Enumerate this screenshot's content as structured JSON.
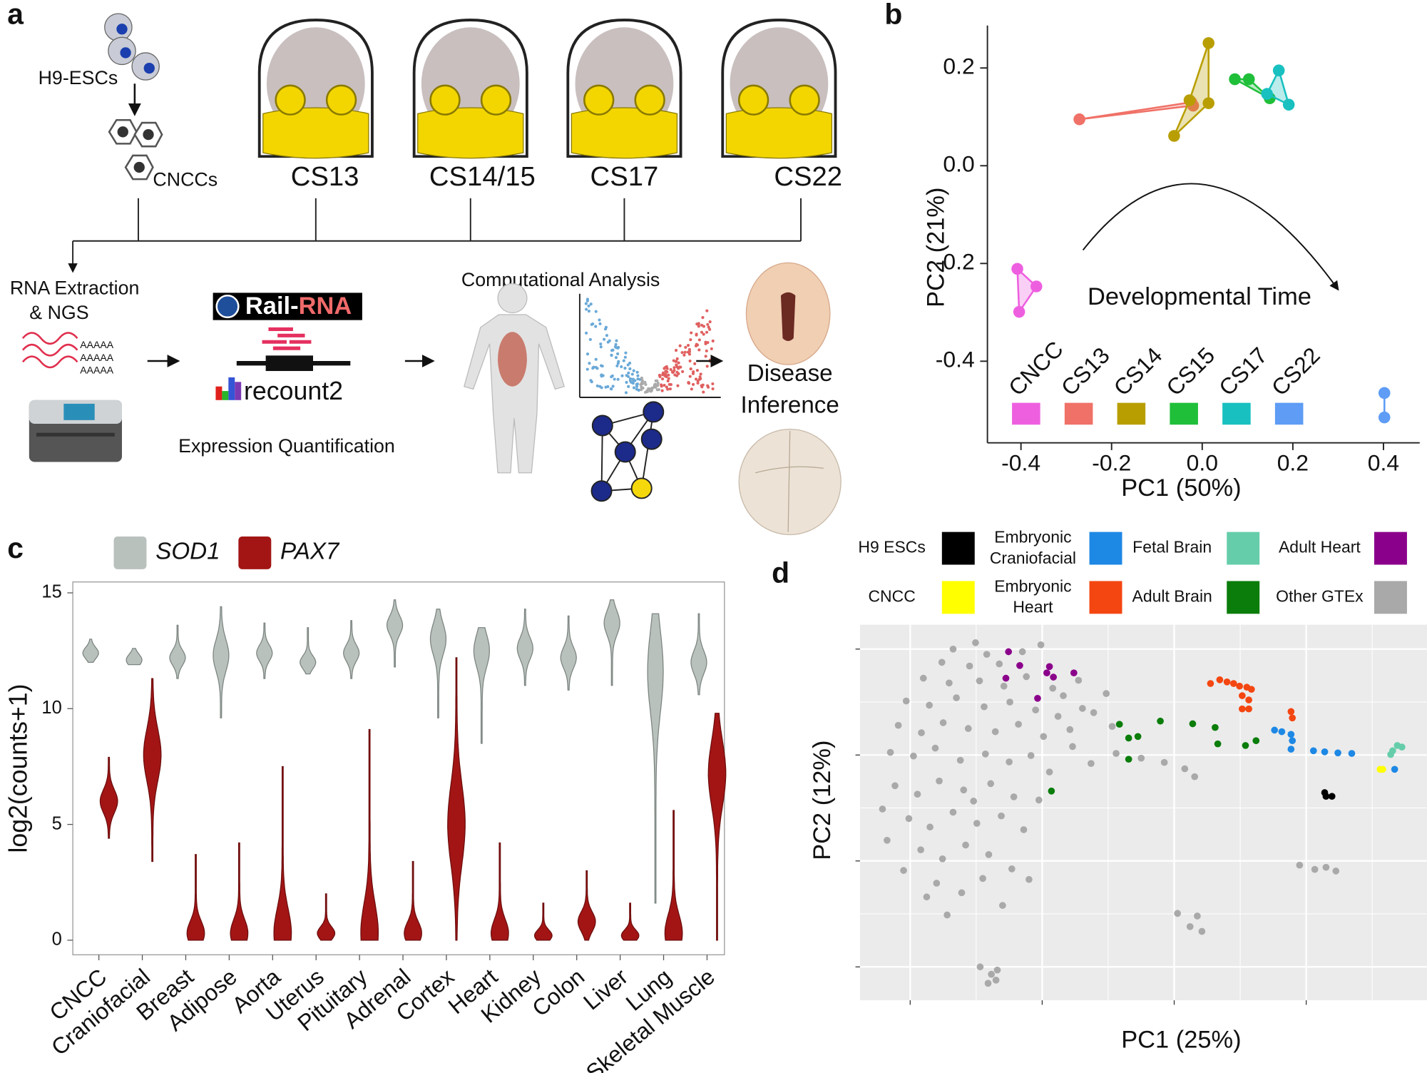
{
  "panel_labels": [
    "a",
    "b",
    "c",
    "d"
  ],
  "workflow": {
    "cells_top": "H9-ESCs",
    "cells_bottom": "CNCCs",
    "stages": [
      "CS13",
      "CS14/15",
      "CS17",
      "CS22"
    ],
    "extraction": [
      "RNA Extraction",
      "& NGS"
    ],
    "polya": [
      "AAAAA",
      "AAAAA",
      "AAAAA"
    ],
    "aligner": "Rail-RNA",
    "database": "recount2",
    "quantification": "Expression Quantification",
    "analysis": "Computational Analysis",
    "outcome": [
      "Disease",
      "Inference"
    ]
  },
  "chart_data": [
    {
      "type": "scatter",
      "xlabel": "PC1 (50%)",
      "ylabel": "PC2 (21%)",
      "annotation": "Developmental Time",
      "xlim": [
        -0.474,
        0.48
      ],
      "ylim": [
        -0.567,
        0.287
      ],
      "xticks": [
        -0.4,
        -0.2,
        {
          "value": 0,
          "label": "0.0"
        },
        0.2,
        0.4
      ],
      "yticks": [
        -0.4,
        -0.2,
        {
          "value": 0,
          "label": "0.0"
        },
        0.2
      ],
      "series": [
        {
          "name": "CNCC",
          "color": "#ee5fe0",
          "x": [
            -0.408,
            -0.366,
            -0.404
          ],
          "values": [
            -0.211,
            -0.247,
            -0.299
          ]
        },
        {
          "name": "CS13",
          "color": "#f07167",
          "x": [
            -0.271,
            -0.024,
            -0.02
          ],
          "values": [
            0.095,
            0.13,
            0.123
          ]
        },
        {
          "name": "CS14",
          "color": "#b89e00",
          "x": [
            0.014,
            0.014,
            -0.062,
            -0.028
          ],
          "values": [
            0.251,
            0.128,
            0.061,
            0.134
          ]
        },
        {
          "name": "CS15",
          "color": "#1fbf3a",
          "x": [
            0.072,
            0.103,
            0.149
          ],
          "values": [
            0.177,
            0.177,
            0.138
          ]
        },
        {
          "name": "CS17",
          "color": "#19c0c0",
          "x": [
            0.169,
            0.191,
            0.143
          ],
          "values": [
            0.195,
            0.125,
            0.147
          ]
        },
        {
          "name": "CS22",
          "color": "#5e9cf5",
          "x": [
            0.402,
            0.402
          ],
          "values": [
            -0.465,
            -0.515
          ]
        }
      ]
    },
    {
      "type": "violin",
      "ylabel": "log2(counts+1)",
      "ylim": [
        -0.63,
        15.47
      ],
      "yticks": [
        0,
        5,
        10,
        15
      ],
      "categories": [
        "CNCC",
        "Craniofacial",
        "Breast",
        "Adipose",
        "Aorta",
        "Uterus",
        "Pituitary",
        "Adrenal",
        "Cortex",
        "Heart",
        "Kidney",
        "Colon",
        "Liver",
        "Lung",
        "Skeletal Muscle"
      ],
      "series": [
        {
          "name": "SOD1",
          "color": "#b9c1bd",
          "values": [
            12.4,
            12.1,
            12.2,
            12.3,
            12.4,
            12.0,
            12.4,
            13.6,
            13.0,
            12.5,
            12.6,
            12.2,
            13.7,
            11.6,
            12.0
          ],
          "min": [
            12.0,
            11.9,
            11.3,
            9.6,
            11.3,
            11.5,
            11.3,
            11.8,
            9.6,
            8.5,
            11.0,
            10.8,
            11.0,
            1.6,
            10.6
          ],
          "max": [
            13.0,
            12.6,
            13.6,
            14.4,
            13.7,
            13.5,
            13.8,
            14.7,
            14.3,
            13.5,
            14.3,
            14.0,
            14.7,
            14.1,
            14.1
          ]
        },
        {
          "name": "PAX7",
          "color": "#a31515",
          "values": [
            6.0,
            8.0,
            0.3,
            0.3,
            0.3,
            0.3,
            0.3,
            0.3,
            5.0,
            0.3,
            0.2,
            0.8,
            0.2,
            0.3,
            7.2
          ],
          "min": [
            4.4,
            3.4,
            0,
            0,
            0,
            0,
            0,
            0,
            0,
            0,
            0,
            0,
            0,
            0,
            0
          ],
          "max": [
            7.9,
            11.3,
            3.7,
            4.2,
            7.5,
            2.0,
            9.1,
            3.4,
            12.2,
            4.2,
            1.6,
            3.0,
            1.6,
            5.6,
            9.8
          ]
        }
      ]
    },
    {
      "type": "scatter",
      "xlabel": "PC1 (25%)",
      "ylabel": "PC2 (12%)",
      "xlim": [
        -47.6,
        38.3
      ],
      "ylim": [
        -26.3,
        44.6
      ],
      "xticks": [
        -40,
        -20,
        0,
        20
      ],
      "yticks": [
        -20,
        0,
        20,
        40
      ],
      "tick_labels": false,
      "grid": true,
      "minor_grid": true,
      "background": "#ebebeb",
      "series": [
        {
          "name": "H9 ESCs",
          "color": "#000000",
          "x": [
            22.8,
            23.9,
            23.0
          ],
          "values": [
            12.9,
            12.2,
            12.2
          ]
        },
        {
          "name": "Embryonic Craniofacial",
          "color": "#1e88e5",
          "x": [
            15.2,
            16.3,
            17.7,
            17.7,
            21.1,
            22.8,
            24.8,
            26.9,
            33.4,
            17.9
          ],
          "values": [
            24.7,
            24.4,
            23.9,
            21.1,
            20.8,
            20.6,
            20.4,
            20.3,
            17.3,
            22.7
          ]
        },
        {
          "name": "Fetal Brain",
          "color": "#66cdaa",
          "x": [
            33.1,
            33.8,
            34.5,
            32.8
          ],
          "values": [
            20.8,
            21.8,
            21.5,
            20.1
          ]
        },
        {
          "name": "Adult Heart",
          "color": "#8b008b",
          "x": [
            -25.1,
            -25.5,
            -23.4,
            -19.3,
            -18.9,
            -18.3,
            -20.7,
            -15.2
          ],
          "values": [
            39.5,
            34.5,
            36.9,
            35.5,
            36.7,
            34.7,
            30.7,
            35.5
          ]
        },
        {
          "name": "CNCC",
          "color": "#ffff00",
          "x": [
            31.2,
            31.6
          ],
          "values": [
            17.3,
            17.3
          ]
        },
        {
          "name": "Embryonic Heart",
          "color": "#f44611",
          "x": [
            5.5,
            6.9,
            8.0,
            9.0,
            9.9,
            11.0,
            11.7,
            10.3,
            11.3,
            10.3,
            11.3,
            17.7,
            17.9
          ],
          "values": [
            33.5,
            34.2,
            33.8,
            33.5,
            33.0,
            32.8,
            32.4,
            31.2,
            30.4,
            28.7,
            28.7,
            28.2,
            27.0
          ]
        },
        {
          "name": "Adult Brain",
          "color": "#0a7d0a",
          "x": [
            -8.3,
            -6.9,
            -5.5,
            -2.1,
            2.8,
            6.2,
            6.6,
            10.8,
            12.4,
            -6.9,
            -18.6
          ],
          "values": [
            25.8,
            23.2,
            23.5,
            26.4,
            25.9,
            25.2,
            22.1,
            21.8,
            22.7,
            19.2,
            13.2
          ]
        },
        {
          "name": "Other GTEx",
          "color": "#a9a9a9",
          "x": [
            -33.5,
            -30.1,
            -28.4,
            -35.2,
            -31.0,
            -26.5,
            -23.0,
            -38.0,
            -34.1,
            -29.5,
            -25.8,
            -22.4,
            -16.8,
            -14.5,
            -40.6,
            -37.1,
            -33.0,
            -28.8,
            -24.9,
            -21.0,
            -17.6,
            -13.9,
            -41.8,
            -38.3,
            -35.0,
            -31.2,
            -27.1,
            -23.6,
            -19.8,
            -15.4,
            -12.6,
            -43.0,
            -39.5,
            -36.2,
            -32.4,
            -28.6,
            -25.0,
            -21.7,
            -18.9,
            -42.3,
            -38.9,
            -35.6,
            -31.9,
            -27.8,
            -24.3,
            -20.5,
            -40.2,
            -37.0,
            -33.5,
            -29.9,
            -26.2,
            -22.8,
            -38.4,
            -35.1,
            -31.6,
            -28.1,
            -24.6,
            -36.0,
            -32.2,
            -29.0,
            -26.0,
            -37.5,
            -12.2,
            -10.3,
            -9.4,
            -8.8,
            -5.0,
            -1.5,
            1.6,
            3.1,
            19.0,
            21.3,
            23.0,
            24.5,
            0.5,
            3.5,
            2.4,
            4.2,
            -29.4,
            -27.7,
            -26.8,
            -28.2,
            -27.0,
            -44.2,
            -43.5,
            -41.0,
            -20.2,
            -18.4,
            -15.8,
            -30.4,
            -34.4,
            -22.0
          ],
          "values": [
            40.0,
            41.2,
            39.0,
            37.5,
            36.8,
            37.2,
            39.5,
            34.5,
            33.6,
            34.0,
            33.0,
            34.8,
            31.2,
            34.1,
            30.2,
            29.4,
            30.8,
            29.1,
            30.0,
            28.5,
            27.3,
            28.8,
            25.6,
            24.2,
            26.1,
            25.0,
            24.4,
            25.8,
            23.5,
            21.6,
            18.4,
            20.5,
            19.8,
            21.3,
            19.0,
            20.2,
            18.7,
            19.9,
            16.8,
            14.2,
            12.6,
            15.1,
            13.4,
            14.6,
            12.1,
            11.5,
            8.0,
            6.4,
            9.2,
            7.1,
            8.5,
            5.9,
            2.1,
            0.4,
            3.0,
            1.2,
            -1.5,
            -4.2,
            -6.0,
            -3.3,
            -8.4,
            -6.8,
            28.0,
            31.6,
            25.4,
            20.3,
            19.4,
            18.6,
            17.4,
            15.9,
            -0.8,
            -1.6,
            -1.2,
            -1.9,
            -9.9,
            -10.4,
            -12.4,
            -13.3,
            -20.0,
            -21.4,
            -20.6,
            -23.1,
            -22.5,
            9.8,
            3.9,
            -1.8,
            40.8,
            32.6,
            24.8,
            11.3,
            -10.2,
            -3.5
          ]
        }
      ]
    }
  ]
}
